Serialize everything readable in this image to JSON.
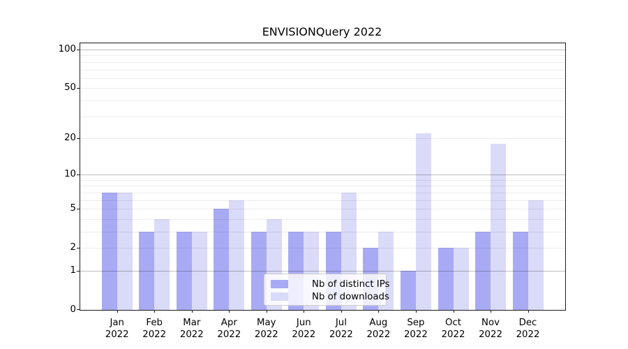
{
  "header": {
    "title": "ENVISIONQuery 2022"
  },
  "legend": {
    "items": [
      {
        "label": "Nb of distinct IPs",
        "color": "#a9aaf4"
      },
      {
        "label": "Nb of downloads",
        "color": "#dadaf9"
      }
    ]
  },
  "axes": {
    "y_tick_labels": [
      "0",
      "1",
      "2",
      "5",
      "10",
      "20",
      "50",
      "100"
    ],
    "x_tick_years": "2022"
  },
  "chart_data": {
    "type": "bar",
    "title": "ENVISIONQuery 2022",
    "categories": [
      "Jan 2022",
      "Feb 2022",
      "Mar 2022",
      "Apr 2022",
      "May 2022",
      "Jun 2022",
      "Jul 2022",
      "Aug 2022",
      "Sep 2022",
      "Oct 2022",
      "Nov 2022",
      "Dec 2022"
    ],
    "series": [
      {
        "name": "Nb of distinct IPs",
        "color": "#a9aaf4",
        "values": [
          7,
          3,
          3,
          5,
          3,
          3,
          3,
          2,
          1,
          2,
          3,
          3
        ]
      },
      {
        "name": "Nb of downloads",
        "color": "#dadaf9",
        "values": [
          7,
          4,
          3,
          6,
          4,
          3,
          7,
          3,
          22,
          2,
          18,
          6
        ]
      }
    ],
    "xlabel": "",
    "ylabel": "",
    "yscale": "log1p",
    "ylim": [
      0,
      112
    ],
    "yticks": [
      0,
      1,
      2,
      5,
      10,
      20,
      50,
      100
    ],
    "major_gridlines": [
      1,
      10,
      100
    ],
    "minor_gridlines": [
      2,
      3,
      4,
      5,
      6,
      7,
      8,
      9,
      20,
      30,
      40,
      50,
      60,
      70,
      80,
      90
    ],
    "grid": true,
    "legend_position": "lower center",
    "bar_layout": "grouped-pair-touching"
  }
}
